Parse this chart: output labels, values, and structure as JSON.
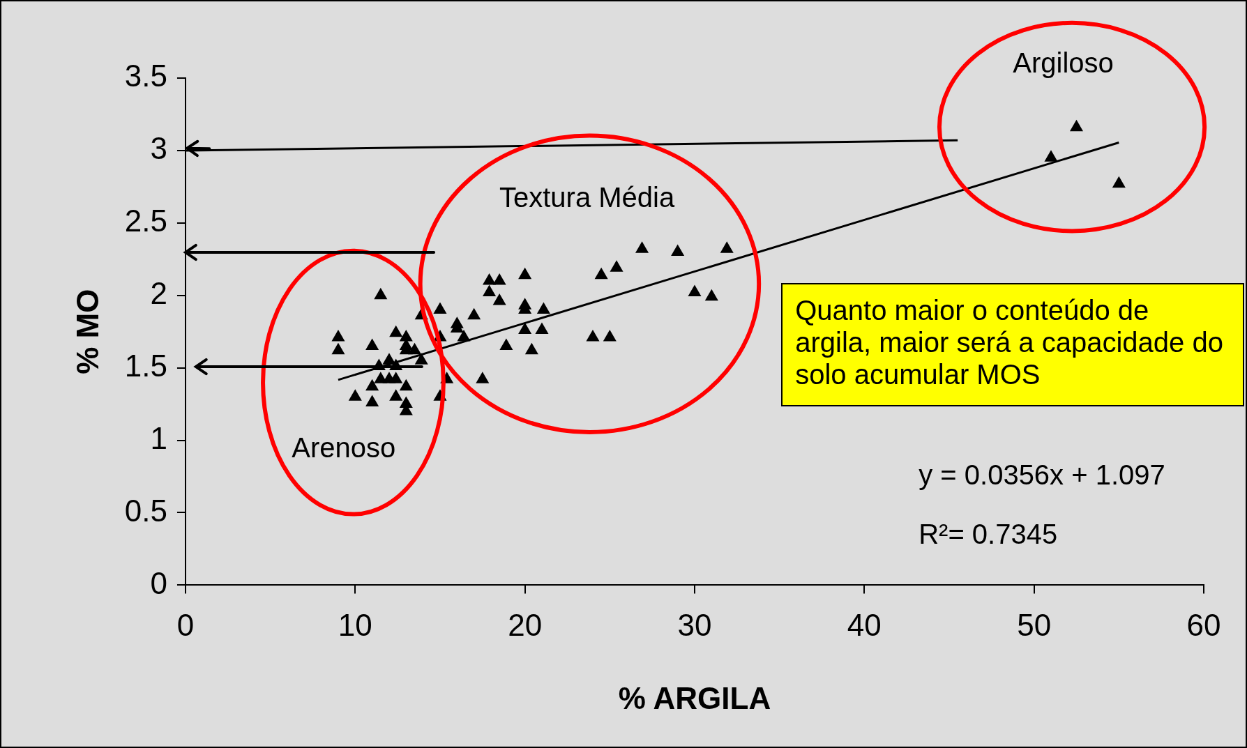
{
  "chart_data": {
    "type": "scatter",
    "xlabel": "% ARGILA",
    "ylabel": "% MO",
    "xlim": [
      0,
      60
    ],
    "xticks": [
      0,
      10,
      20,
      30,
      40,
      50,
      60
    ],
    "ylim": [
      0,
      3.5
    ],
    "yticks": [
      0,
      0.5,
      1,
      1.5,
      2,
      2.5,
      3,
      3.5
    ],
    "grid": false,
    "legend": false,
    "series": [
      {
        "marker": "triangle",
        "color": "#000000",
        "x": [
          9.0,
          9.0,
          11.0,
          11.5,
          10.0,
          11.0,
          11.0,
          11.4,
          11.5,
          12.0,
          12.0,
          12.4,
          12.4,
          12.4,
          12.4,
          13.0,
          13.0,
          13.0,
          13.0,
          13.0,
          13.0,
          13.5,
          13.9,
          13.9,
          15.0,
          15.0,
          15.0,
          15.4,
          16.0,
          16.0,
          16.4,
          17.0,
          17.5,
          17.9,
          17.9,
          18.5,
          18.5,
          18.9,
          20.0,
          20.0,
          20.0,
          20.0,
          20.4,
          21.0,
          21.1,
          24.0,
          24.5,
          25.0,
          25.4,
          26.9,
          29.0,
          30.0,
          31.0,
          31.9,
          51.0,
          52.5,
          55.0
        ],
        "values": [
          1.71,
          1.62,
          1.65,
          2.0,
          1.3,
          1.37,
          1.26,
          1.51,
          1.42,
          1.55,
          1.42,
          1.74,
          1.51,
          1.42,
          1.3,
          1.71,
          1.65,
          1.62,
          1.37,
          1.25,
          1.2,
          1.62,
          1.55,
          1.86,
          1.9,
          1.71,
          1.3,
          1.42,
          1.8,
          1.77,
          1.71,
          1.86,
          1.42,
          2.1,
          2.02,
          2.1,
          1.96,
          1.65,
          2.14,
          1.93,
          1.9,
          1.76,
          1.62,
          1.76,
          1.9,
          1.71,
          2.14,
          1.71,
          2.19,
          2.32,
          2.3,
          2.02,
          1.99,
          2.32,
          2.95,
          3.16,
          2.77
        ]
      },
      {
        "type": "line",
        "marker": "none",
        "color": "#000000",
        "x": [
          9,
          55
        ],
        "values": [
          1.417,
          3.055
        ]
      },
      {
        "type": "line",
        "marker": "none",
        "line_style": "solid",
        "color": "#000000",
        "x": [
          45.5,
          0
        ],
        "values": [
          3.07,
          3.0
        ]
      }
    ],
    "annotations": [
      "Arenoso",
      "Textura Média",
      "Argiloso",
      "Quanto maior o conteúdo de argila, maior será a capacidade do solo acumular MOS",
      "y = 0.0356x + 1.097",
      "R²= 0.7345"
    ]
  }
}
